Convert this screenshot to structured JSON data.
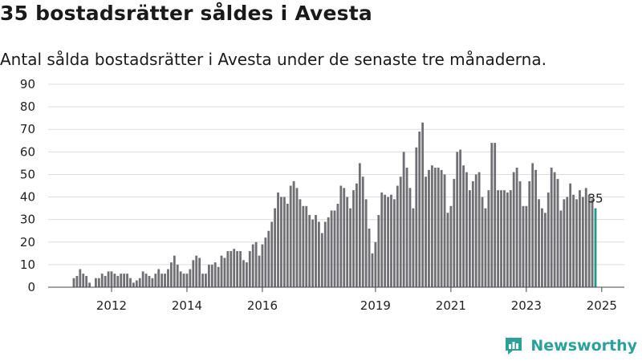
{
  "title": "35 bostadsrätter såldes i Avesta",
  "subtitle": "Antal sålda bostadsrätter i Avesta under de senaste tre månaderna.",
  "brand": {
    "name": "Newsworthy",
    "icon": "newsworthy-logo-icon",
    "color": "#2aa19b"
  },
  "colors": {
    "bar": "#707074",
    "highlight": "#1e9a8a",
    "grid": "#dcdcdc"
  },
  "chart_data": {
    "type": "bar",
    "title": "35 bostadsrätter såldes i Avesta",
    "xlabel": "",
    "ylabel": "",
    "ylim": [
      0,
      90
    ],
    "yticks": [
      0,
      10,
      20,
      30,
      40,
      50,
      60,
      70,
      80,
      90
    ],
    "grid": true,
    "start": "2011-01",
    "xtick_labels": [
      {
        "label": "2012",
        "index": 12
      },
      {
        "label": "2014",
        "index": 36
      },
      {
        "label": "2016",
        "index": 60
      },
      {
        "label": "2019",
        "index": 96
      },
      {
        "label": "2021",
        "index": 120
      },
      {
        "label": "2023",
        "index": 144
      },
      {
        "label": "2025",
        "index": 168
      }
    ],
    "highlight_label": "35",
    "values": [
      4,
      5,
      8,
      6,
      5,
      2,
      0,
      4,
      4,
      6,
      5,
      7,
      7,
      6,
      5,
      6,
      6,
      6,
      4,
      2,
      3,
      4,
      7,
      6,
      5,
      4,
      6,
      8,
      6,
      6,
      8,
      11,
      14,
      10,
      7,
      6,
      6,
      8,
      12,
      14,
      13,
      6,
      6,
      10,
      10,
      11,
      9,
      14,
      13,
      16,
      16,
      17,
      16,
      16,
      12,
      11,
      16,
      19,
      20,
      14,
      19,
      22,
      25,
      29,
      35,
      42,
      40,
      40,
      37,
      45,
      47,
      44,
      39,
      36,
      36,
      32,
      30,
      32,
      29,
      24,
      29,
      31,
      34,
      34,
      37,
      45,
      44,
      40,
      35,
      43,
      46,
      55,
      49,
      39,
      26,
      15,
      20,
      32,
      42,
      41,
      40,
      41,
      39,
      45,
      49,
      60,
      53,
      44,
      35,
      62,
      69,
      73,
      49,
      52,
      54,
      53,
      53,
      52,
      50,
      33,
      36,
      48,
      60,
      61,
      54,
      51,
      43,
      47,
      50,
      51,
      40,
      35,
      43,
      64,
      64,
      43,
      43,
      43,
      42,
      43,
      51,
      53,
      47,
      36,
      36,
      47,
      55,
      52,
      39,
      35,
      33,
      42,
      53,
      51,
      48,
      34,
      39,
      40,
      46,
      41,
      39,
      43,
      40,
      44,
      41,
      39,
      35
    ]
  }
}
